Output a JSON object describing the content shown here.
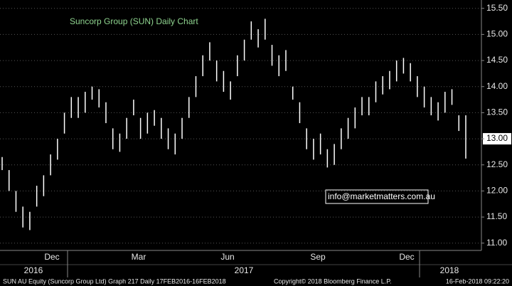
{
  "chart_data": {
    "type": "range_bar",
    "title": "Suncorp Group (SUN) Daily Chart",
    "annotation": "info@marketmatters.com.au",
    "footer_left": "SUN AU Equity (Suncorp Group Ltd) Graph 217  Daily 17FEB2016-16FEB2018",
    "footer_mid": "Copyright© 2018 Bloomberg Finance L.P.",
    "footer_right": "16-Feb-2018 09:22:20",
    "months": [
      "Dec",
      "Mar",
      "Jun",
      "Sep",
      "Dec"
    ],
    "years": [
      "2016",
      "2017",
      "2018"
    ],
    "color": "#ffffff",
    "last_price": 13.0,
    "ylim": [
      10.86,
      15.66
    ],
    "yticks": [
      {
        "value": 11.0,
        "label": "11.00"
      },
      {
        "value": 11.5,
        "label": "11.50"
      },
      {
        "value": 12.0,
        "label": "12.00"
      },
      {
        "value": 12.5,
        "label": "12.50"
      },
      {
        "value": 13.0,
        "label": "13.00"
      },
      {
        "value": 13.5,
        "label": "13.50"
      },
      {
        "value": 14.0,
        "label": "14.00"
      },
      {
        "value": 14.5,
        "label": "14.50"
      },
      {
        "value": 15.0,
        "label": "15.00"
      },
      {
        "value": 15.5,
        "label": "15.50"
      }
    ],
    "grid": true,
    "highs": [
      12.65,
      12.4,
      12.0,
      11.7,
      11.6,
      12.1,
      12.3,
      12.7,
      13.0,
      13.5,
      13.8,
      13.8,
      13.9,
      14.0,
      13.95,
      13.7,
      13.2,
      13.1,
      13.4,
      13.75,
      13.4,
      13.5,
      13.55,
      13.4,
      13.2,
      13.1,
      13.4,
      13.8,
      14.2,
      14.6,
      14.85,
      14.5,
      14.3,
      14.1,
      14.6,
      14.9,
      15.25,
      15.1,
      15.3,
      14.8,
      14.6,
      14.7,
      14.0,
      13.7,
      13.2,
      13.0,
      13.1,
      12.8,
      12.9,
      13.2,
      13.4,
      13.6,
      13.8,
      13.8,
      14.1,
      14.2,
      14.3,
      14.5,
      14.55,
      14.45,
      14.2,
      14.0,
      13.8,
      13.7,
      13.9,
      13.95,
      13.45,
      13.45
    ],
    "lows": [
      12.4,
      12.0,
      11.6,
      11.3,
      11.25,
      11.7,
      11.9,
      12.3,
      12.6,
      13.1,
      13.4,
      13.4,
      13.5,
      13.75,
      13.6,
      13.3,
      12.8,
      12.75,
      13.0,
      13.45,
      13.0,
      13.1,
      13.25,
      13.0,
      12.8,
      12.7,
      13.0,
      13.4,
      13.8,
      14.2,
      14.5,
      14.1,
      13.9,
      13.75,
      14.2,
      14.5,
      14.9,
      14.75,
      14.9,
      14.4,
      14.2,
      14.3,
      13.75,
      13.3,
      12.8,
      12.6,
      12.7,
      12.45,
      12.5,
      12.8,
      13.0,
      13.2,
      13.45,
      13.45,
      13.7,
      13.85,
      13.95,
      14.1,
      14.25,
      14.1,
      13.8,
      13.6,
      13.45,
      13.35,
      13.5,
      13.65,
      13.15,
      12.62
    ]
  }
}
